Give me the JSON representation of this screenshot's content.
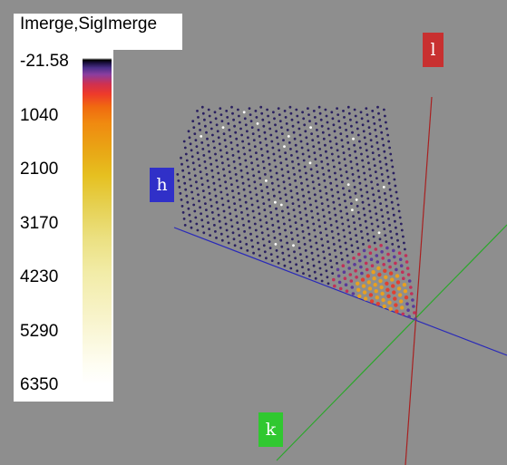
{
  "legend": {
    "title": "Imerge,SigImerge",
    "ticks": [
      "-21.58",
      "1040",
      "2100",
      "3170",
      "4230",
      "5290",
      "6350"
    ]
  },
  "axes": {
    "h": {
      "label": "h",
      "color": "#3030c8"
    },
    "k": {
      "label": "k",
      "color": "#30c830"
    },
    "l": {
      "label": "l",
      "color": "#c83030"
    }
  },
  "colors": {
    "background": "#8e8e8e",
    "low_intensity": "#2a2060",
    "high_intensity": "#e8a020"
  }
}
